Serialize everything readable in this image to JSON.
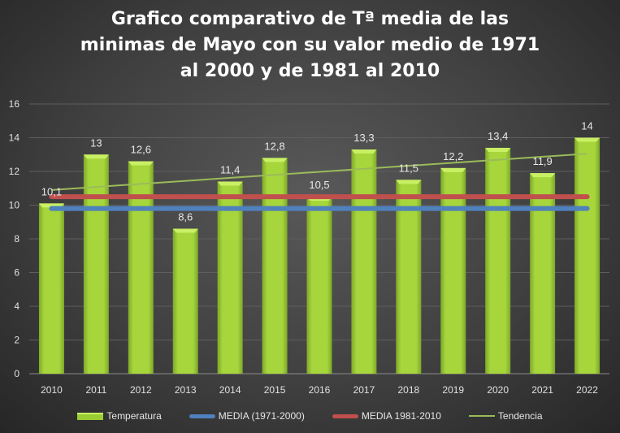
{
  "chart_data": {
    "type": "bar",
    "title": "Grafico comparativo de Tª media de las minimas de Mayo con su valor medio de 1971 al 2000 y de 1981 al 2010",
    "title_lines": [
      "Grafico comparativo de Tª media de las",
      "minimas de Mayo con su valor medio de 1971",
      "al 2000 y de 1981 al 2010"
    ],
    "categories": [
      "2010",
      "2011",
      "2012",
      "2013",
      "2014",
      "2015",
      "2016",
      "2017",
      "2018",
      "2019",
      "2020",
      "2021",
      "2022"
    ],
    "series": [
      {
        "name": "Temperatura",
        "type": "bar",
        "color": "#9ACD32",
        "values": [
          10.1,
          13,
          12.6,
          8.6,
          11.4,
          12.8,
          10.5,
          13.3,
          11.5,
          12.2,
          13.4,
          11.9,
          14
        ],
        "labels": [
          "10,1",
          "13",
          "12,6",
          "8,6",
          "11,4",
          "12,8",
          "10,5",
          "13,3",
          "11,5",
          "12,2",
          "13,4",
          "11,9",
          "14"
        ]
      },
      {
        "name": "MEDIA (1971-2000)",
        "type": "line",
        "color": "#4F81BD",
        "values_constant": 9.8
      },
      {
        "name": "MEDIA 1981-2010",
        "type": "line",
        "color": "#C0504D",
        "values_constant": 10.5
      },
      {
        "name": "Tendencia",
        "type": "trendline",
        "color": "#9BBB59",
        "start": 10.9,
        "end": 13.05
      }
    ],
    "xlabel": "",
    "ylabel": "",
    "ylim": [
      0,
      16
    ],
    "yticks": [
      0,
      2,
      4,
      6,
      8,
      10,
      12,
      14,
      16
    ],
    "grid": true,
    "legend": "bottom"
  }
}
